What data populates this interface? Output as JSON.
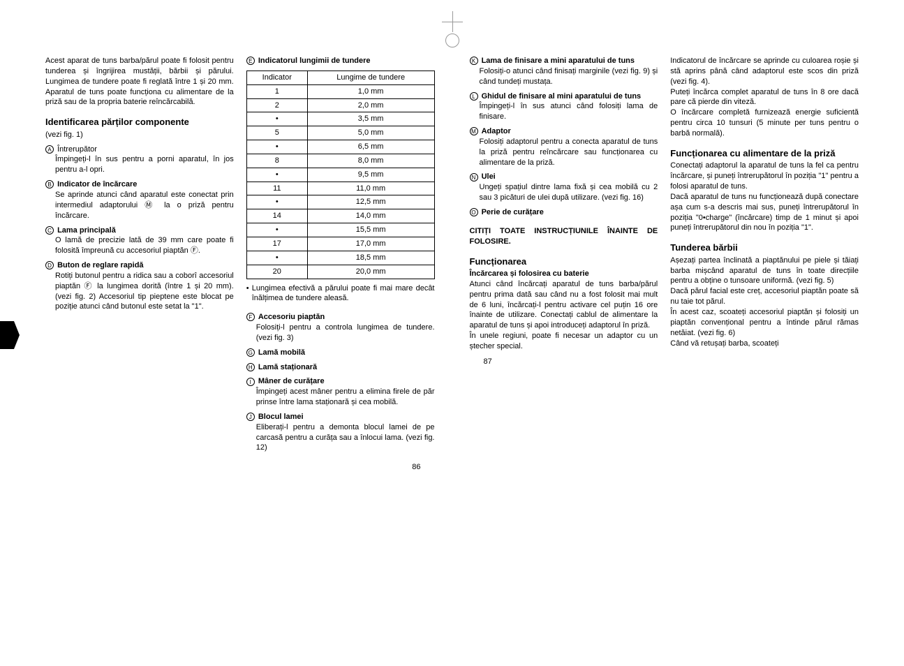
{
  "leftPage": {
    "col1": {
      "intro": "Acest aparat de tuns barba/părul poate fi folosit pentru tunderea și îngrijirea mustății, bărbii și părului. Lungimea de tundere poate fi reglată între 1 și 20 mm. Aparatul de tuns poate funcționa cu alimentare de la priză sau de la propria baterie reîncărcabilă.",
      "heading1": "Identificarea părților componente",
      "heading1_sub": "(vezi fig. 1)",
      "itemA_letter": "A",
      "itemA_label": "Întrerupător",
      "itemA_body": "Împingeți-l în sus pentru a porni aparatul, în jos pentru a-l opri.",
      "itemB_letter": "B",
      "itemB_label": "Indicator de încărcare",
      "itemB_body": "Se aprinde atunci când aparatul este conectat prin intermediul adaptorului Ⓜ la o priză pentru încărcare.",
      "itemC_letter": "C",
      "itemC_label": "Lama principală",
      "itemC_body": "O lamă de precizie lată de 39 mm care poate fi folosită împreună cu accesoriul piaptăn Ⓕ.",
      "itemD_letter": "D",
      "itemD_label": "Buton de reglare rapidă",
      "itemD_body": "Rotiți butonul pentru a ridica sau a coborî accesoriul piaptăn Ⓕ la lungimea dorită (între 1 și 20 mm). (vezi fig. 2) Accesoriul tip pieptene este blocat pe poziție atunci când butonul este setat la \"1\"."
    },
    "col2": {
      "itemE_letter": "E",
      "itemE_label": "Indicatorul lungimii de tundere",
      "table_h1": "Indicator",
      "table_h2": "Lungime de tundere",
      "table_rows": [
        [
          "1",
          "1,0 mm"
        ],
        [
          "2",
          "2,0 mm"
        ],
        [
          "•",
          "3,5 mm"
        ],
        [
          "5",
          "5,0 mm"
        ],
        [
          "•",
          "6,5 mm"
        ],
        [
          "8",
          "8,0 mm"
        ],
        [
          "•",
          "9,5 mm"
        ],
        [
          "11",
          "11,0 mm"
        ],
        [
          "•",
          "12,5 mm"
        ],
        [
          "14",
          "14,0 mm"
        ],
        [
          "•",
          "15,5 mm"
        ],
        [
          "17",
          "17,0 mm"
        ],
        [
          "•",
          "18,5 mm"
        ],
        [
          "20",
          "20,0 mm"
        ]
      ],
      "note": "• Lungimea efectivă a părului poate fi mai mare decât înălțimea de tundere aleasă.",
      "itemF_letter": "F",
      "itemF_label": "Accesoriu piaptăn",
      "itemF_body": "Folosiți-l pentru a controla lungimea de tundere. (vezi fig. 3)",
      "itemG_letter": "G",
      "itemG_label": "Lamă mobilă",
      "itemH_letter": "H",
      "itemH_label": "Lamă staționară",
      "itemI_letter": "I",
      "itemI_label": "Mâner de curățare",
      "itemI_body": "Împingeți acest mâner pentru a elimina firele de păr prinse între lama staționară și cea mobilă.",
      "itemJ_letter": "J",
      "itemJ_label": "Blocul lamei",
      "itemJ_body": "Eliberați-l pentru a demonta blocul lamei de pe carcasă pentru a curăța sau a înlocui lama. (vezi fig. 12)"
    },
    "pageNum": "86"
  },
  "rightPage": {
    "col1": {
      "itemK_letter": "K",
      "itemK_label": "Lama de finisare a mini aparatului de tuns",
      "itemK_body": "Folosiți-o atunci când finisați marginile (vezi fig. 9) și când tundeți mustața.",
      "itemL_letter": "L",
      "itemL_label": "Ghidul de finisare al mini aparatului de tuns",
      "itemL_body": "Împingeți-l în sus atunci când folosiți lama de finisare.",
      "itemM_letter": "M",
      "itemM_label": "Adaptor",
      "itemM_body": "Folosiți adaptorul pentru a conecta aparatul de tuns la priză pentru reîncărcare sau funcționarea cu alimentare de la priză.",
      "itemN_letter": "N",
      "itemN_label": "Ulei",
      "itemN_body": "Ungeți spațiul dintre lama fixă și cea mobilă cu 2 sau 3 picături de ulei după utilizare. (vezi fig. 16)",
      "itemO_letter": "O",
      "itemO_label": "Perie de curățare",
      "warning": "CITIȚI TOATE INSTRUCȚIUNILE ÎNAINTE DE FOLOSIRE.",
      "heading2": "Funcționarea",
      "sub1_label": "Încărcarea și folosirea cu baterie",
      "sub1_body": "Atunci când încărcați aparatul de tuns barba/părul pentru prima dată sau când nu a fost folosit mai mult de 6 luni, încărcați-l pentru activare cel puțin 16 ore înainte de utilizare. Conectați cablul de alimentare la aparatul de tuns și apoi introduceți adaptorul în priză.",
      "sub1_body2": "În unele regiuni, poate fi necesar un adaptor cu un ștecher special."
    },
    "col2": {
      "para1": "Indicatorul de încărcare se aprinde cu culoarea roșie și stă aprins până când adaptorul este scos din priză (vezi fig. 4).",
      "para2": "Puteți încărca complet aparatul de tuns în 8 ore dacă pare că pierde din viteză.",
      "para3": "O încărcare completă furnizează energie suficientă pentru circa 10 tunsuri (5 minute per tuns pentru o barbă normală).",
      "heading3": "Funcționarea cu alimentare de la priză",
      "para4": "Conectați adaptorul la aparatul de tuns la fel ca pentru încărcare, și puneți întrerupătorul în poziția \"1\" pentru a folosi aparatul de tuns.",
      "para5": "Dacă aparatul de tuns nu funcționează după conectare așa cum s-a descris mai sus, puneți întrerupătorul în poziția \"0•charge\" (încărcare) timp de 1 minut și apoi puneți întrerupătorul din nou în poziția \"1\".",
      "heading4": "Tunderea bărbii",
      "para6": "Așezați partea înclinată a piaptănului pe piele și tăiați barba mișcând aparatul de tuns în toate direcțiile pentru a obține o tunsoare uniformă. (vezi fig. 5)",
      "para7": "Dacă părul facial este creț, accesoriul piaptăn poate să nu taie tot părul.",
      "para8": "În acest caz, scoateți accesoriul piaptăn și folosiți un piaptăn convențional pentru a întinde părul rămas netăiat. (vezi fig. 6)",
      "para9": "Când vă retușați barba, scoateți"
    },
    "pageNum": "87"
  }
}
